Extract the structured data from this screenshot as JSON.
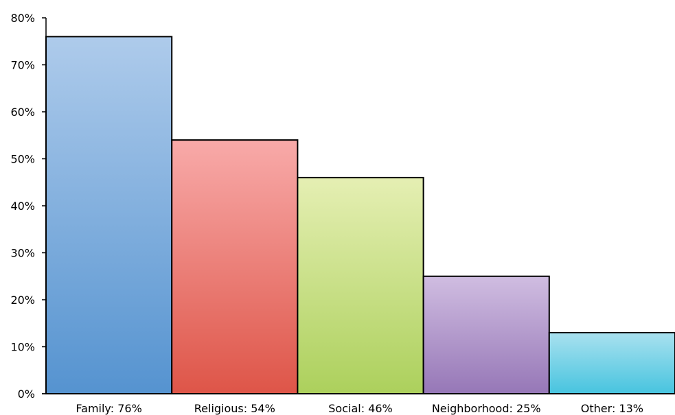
{
  "chart_data": {
    "type": "bar",
    "title": "",
    "xlabel": "",
    "ylabel": "",
    "categories": [
      "Family: 76%",
      "Religious: 54%",
      "Social: 46%",
      "Neighborhood: 25%",
      "Other: 13%"
    ],
    "values": [
      76,
      54,
      46,
      25,
      13
    ],
    "ylim": [
      0,
      80
    ],
    "yticks": [
      "0%",
      "10%",
      "20%",
      "30%",
      "40%",
      "50%",
      "60%",
      "70%",
      "80%"
    ],
    "grid": false,
    "legend": "none",
    "bar_gradients": [
      {
        "top": "#aecbeb",
        "bottom": "#5593d0"
      },
      {
        "top": "#f8aaa9",
        "bottom": "#de5548"
      },
      {
        "top": "#e5efb3",
        "bottom": "#acd05c"
      },
      {
        "top": "#d0bde1",
        "bottom": "#9677b7"
      },
      {
        "top": "#a9e1ef",
        "bottom": "#47c4df"
      }
    ],
    "bar_outline": "#000000",
    "axis_color": "#000000"
  }
}
